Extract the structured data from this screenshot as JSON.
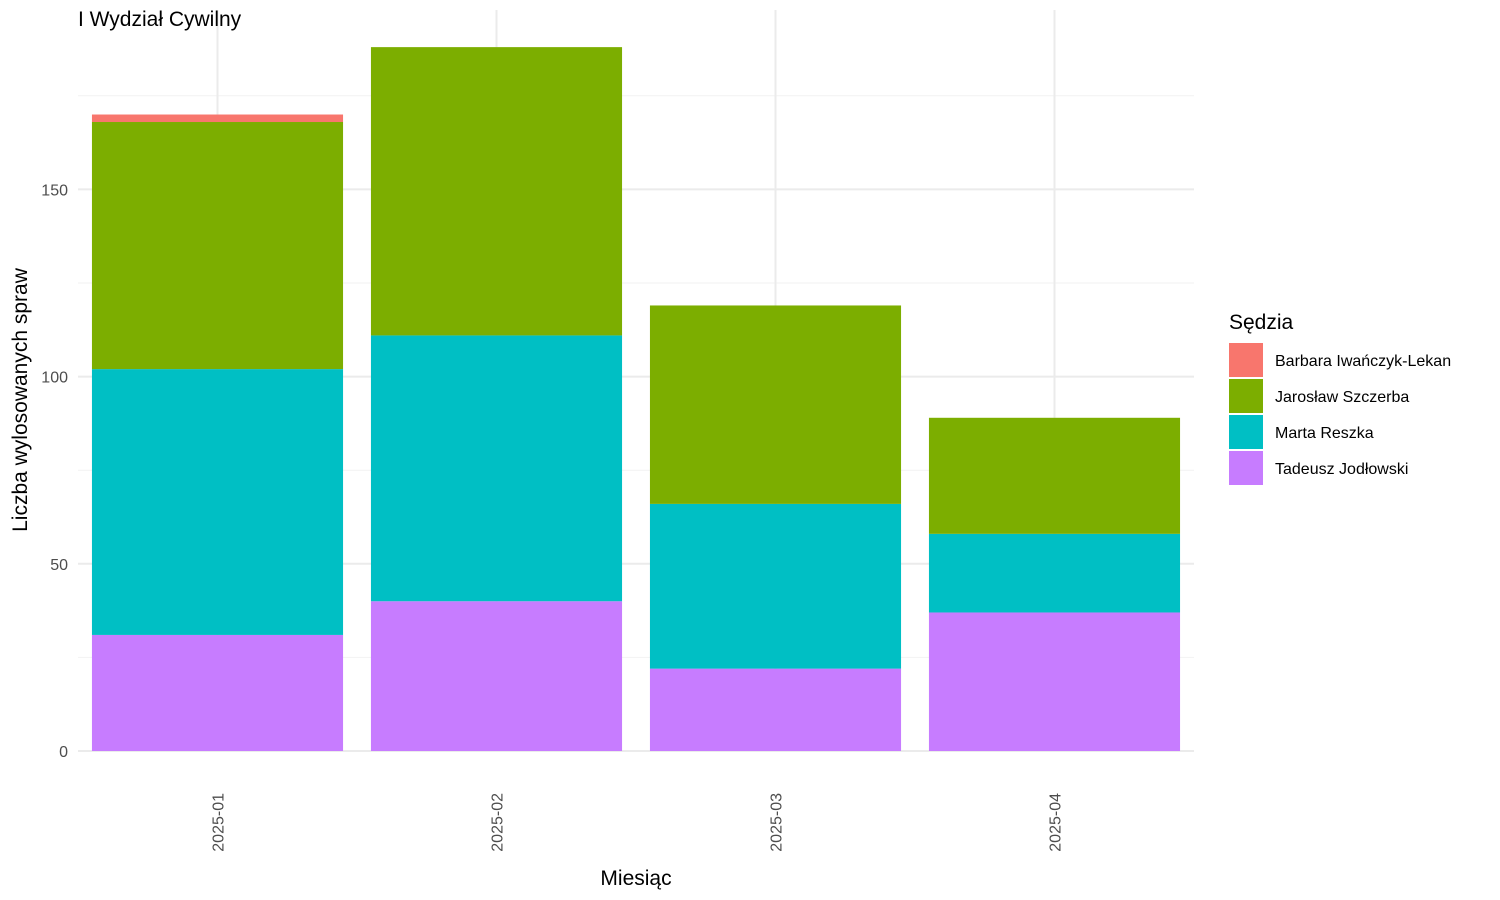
{
  "chart_data": {
    "type": "bar",
    "stacked": true,
    "title": "I Wydział Cywilny",
    "xlabel": "Miesiąc",
    "ylabel": "Liczba wylosowanych spraw",
    "ylim": [
      0,
      197
    ],
    "yticks": [
      0,
      50,
      100,
      150
    ],
    "grid": true,
    "legend_title": "Sędzia",
    "legend_position": "right",
    "categories": [
      "2025-01",
      "2025-02",
      "2025-03",
      "2025-04"
    ],
    "series": [
      {
        "name": "Barbara Iwańczyk-Lekan",
        "color": "#F8766D",
        "values": [
          2,
          0,
          0,
          0
        ]
      },
      {
        "name": "Jarosław Szczerba",
        "color": "#7CAE00",
        "values": [
          66,
          77,
          53,
          31
        ]
      },
      {
        "name": "Marta Reszka",
        "color": "#00BFC4",
        "values": [
          71,
          71,
          44,
          21
        ]
      },
      {
        "name": "Tadeusz Jodłowski",
        "color": "#C77CFF",
        "values": [
          31,
          40,
          22,
          37
        ]
      }
    ]
  }
}
